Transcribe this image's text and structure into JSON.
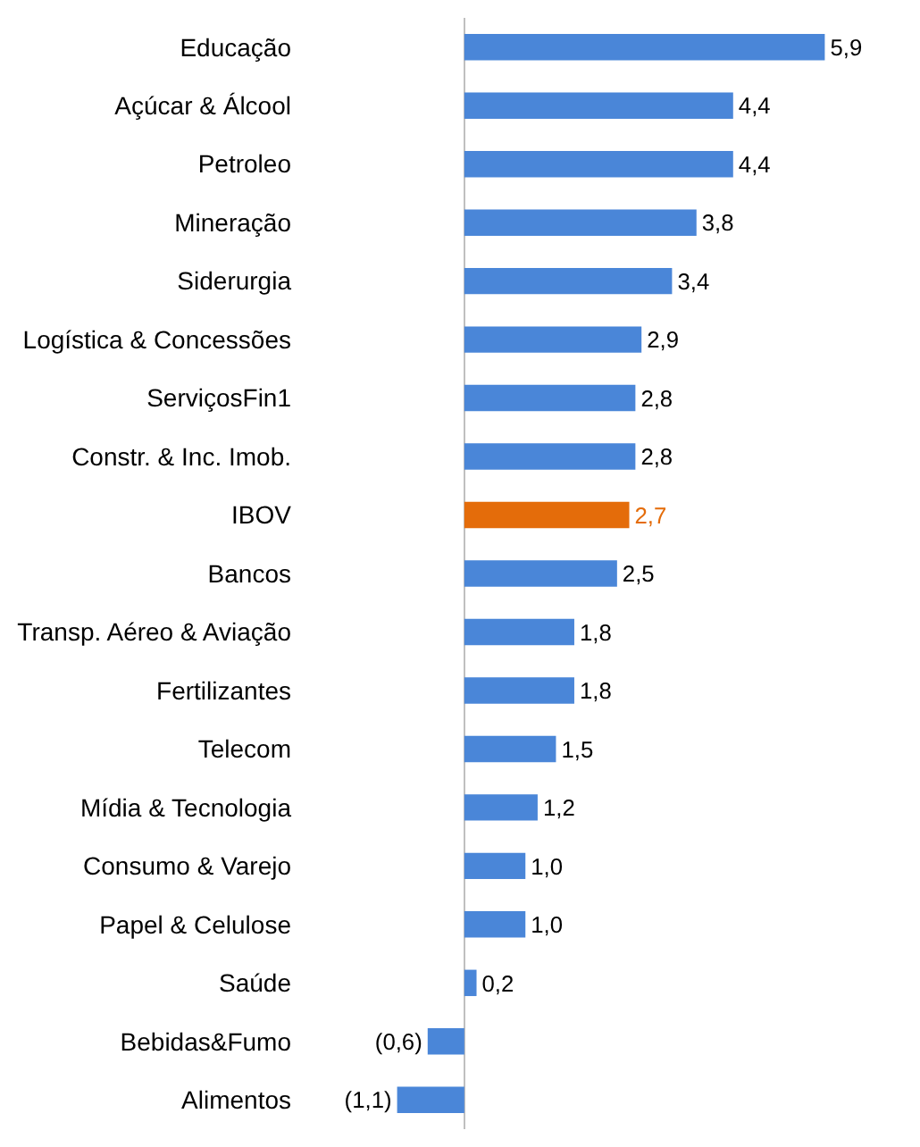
{
  "chart_data": {
    "type": "bar",
    "orientation": "horizontal",
    "tick_labels": "y",
    "grid": false,
    "legend": false,
    "categories": [
      "Educação",
      "Açúcar & Álcool",
      "Petroleo",
      "Mineração",
      "Siderurgia",
      "Logística & Concessões",
      "ServiçosFin1",
      "Constr. & Inc. Imob.",
      "IBOV",
      "Bancos",
      "Transp. Aéreo & Aviação",
      "Fertilizantes",
      "Telecom",
      "Mídia & Tecnologia",
      "Consumo & Varejo",
      "Papel & Celulose",
      "Saúde",
      "Bebidas&Fumo",
      "Alimentos"
    ],
    "values": [
      5.9,
      4.4,
      4.4,
      3.8,
      3.4,
      2.9,
      2.8,
      2.8,
      2.7,
      2.5,
      1.8,
      1.8,
      1.5,
      1.2,
      1.0,
      1.0,
      0.2,
      -0.6,
      -1.1
    ],
    "value_labels": [
      "5,9",
      "4,4",
      "4,4",
      "3,8",
      "3,4",
      "2,9",
      "2,8",
      "2,8",
      "2,7",
      "2,5",
      "1,8",
      "1,8",
      "1,5",
      "1,2",
      "1,0",
      "1,0",
      "0,2",
      "(0,6)",
      "(1,1)"
    ],
    "colors": [
      "#4a86d8",
      "#4a86d8",
      "#4a86d8",
      "#4a86d8",
      "#4a86d8",
      "#4a86d8",
      "#4a86d8",
      "#4a86d8",
      "#e46c0a",
      "#4a86d8",
      "#4a86d8",
      "#4a86d8",
      "#4a86d8",
      "#4a86d8",
      "#4a86d8",
      "#4a86d8",
      "#4a86d8",
      "#4a86d8",
      "#4a86d8"
    ]
  }
}
